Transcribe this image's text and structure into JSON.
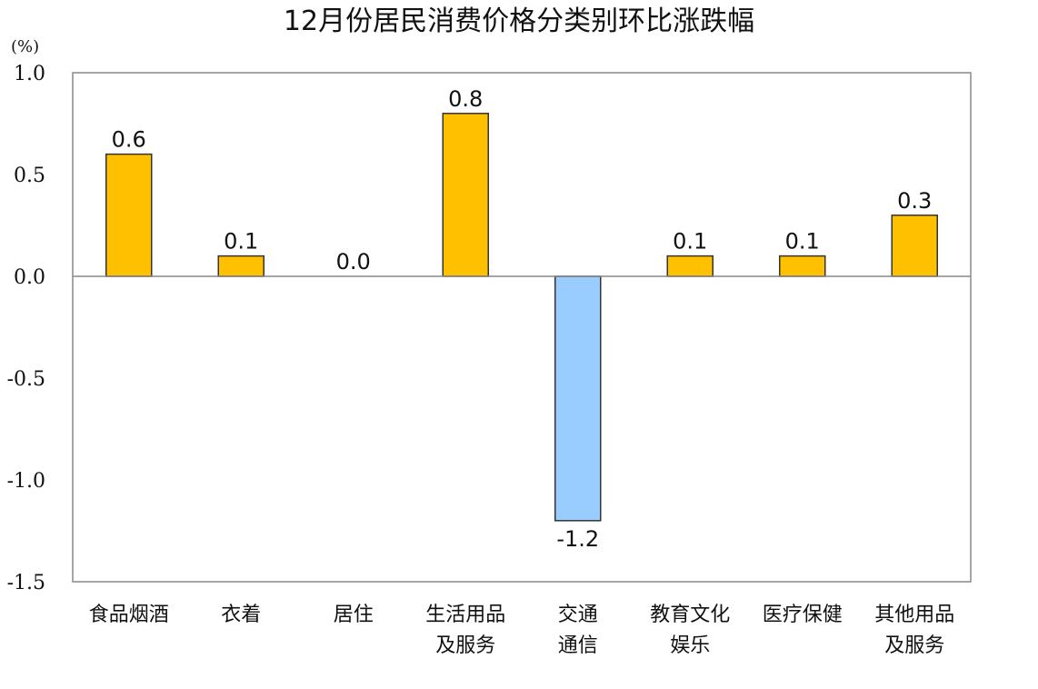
{
  "chart_data": {
    "type": "bar",
    "title": "12月份居民消费价格分类别环比涨跌幅",
    "unit": "(%)",
    "categories": [
      [
        "食品烟酒"
      ],
      [
        "衣着"
      ],
      [
        "居住"
      ],
      [
        "生活用品",
        "及服务"
      ],
      [
        "交通",
        "通信"
      ],
      [
        "教育文化",
        "娱乐"
      ],
      [
        "医疗保健"
      ],
      [
        "其他用品",
        "及服务"
      ]
    ],
    "values": [
      0.6,
      0.1,
      0.0,
      0.8,
      -1.2,
      0.1,
      0.1,
      0.3
    ],
    "value_labels": [
      "0.6",
      "0.1",
      "0.0",
      "0.8",
      "-1.2",
      "0.1",
      "0.1",
      "0.3"
    ],
    "ylim": [
      -1.5,
      1.0
    ],
    "yticks": [
      1.0,
      0.5,
      0.0,
      -0.5,
      -1.0,
      -1.5
    ],
    "ytick_labels": [
      "1.0",
      "0.5",
      "0.0",
      "-0.5",
      "-1.0",
      "-1.5"
    ],
    "grid": false,
    "legend": "none",
    "colors": {
      "positive": "#FFC000",
      "negative": "#99CCFF",
      "bar_stroke": "#333333",
      "frame": "#888888"
    }
  }
}
